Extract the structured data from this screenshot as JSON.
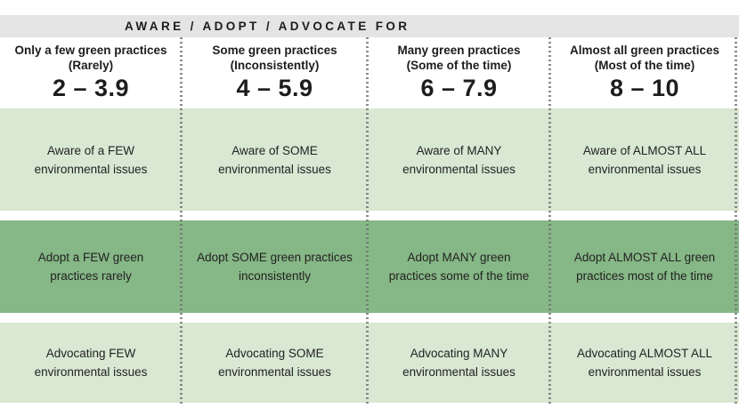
{
  "title_bar": {
    "label": "AWARE / ADOPT / ADVOCATE FOR"
  },
  "columns": [
    {
      "header": {
        "title": "Only a few green practices\n(Rarely)",
        "range": "2 – 3.9"
      },
      "aware": "Aware of a FEW\nenvironmental issues",
      "adopt": "Adopt a FEW green\npractices rarely",
      "advocate": "Advocating FEW\nenvironmental issues"
    },
    {
      "header": {
        "title": "Some green practices\n(Inconsistently)",
        "range": "4 – 5.9"
      },
      "aware": "Aware of SOME\nenvironmental issues",
      "adopt": "Adopt SOME green practices\ninconsistently",
      "advocate": "Advocating SOME\nenvironmental issues"
    },
    {
      "header": {
        "title": "Many green practices\n(Some of the time)",
        "range": "6 – 7.9"
      },
      "aware": "Aware of MANY\nenvironmental issues",
      "adopt": "Adopt MANY green\npractices some of the time",
      "advocate": "Advocating MANY\nenvironmental issues"
    },
    {
      "header": {
        "title": "Almost all green practices\n(Most of the time)",
        "range": "8 – 10"
      },
      "aware": "Aware of ALMOST ALL\nenvironmental issues",
      "adopt": "Adopt ALMOST ALL green\npractices most of the time",
      "advocate": "Advocating ALMOST ALL\nenvironmental issues"
    }
  ],
  "colors": {
    "header_bar_bg": "#e4e4e4",
    "light_green": "#d8e8d3",
    "medium_green": "#86b786",
    "text": "#1d1d1d",
    "divider_dot": "#6f6f6f"
  }
}
